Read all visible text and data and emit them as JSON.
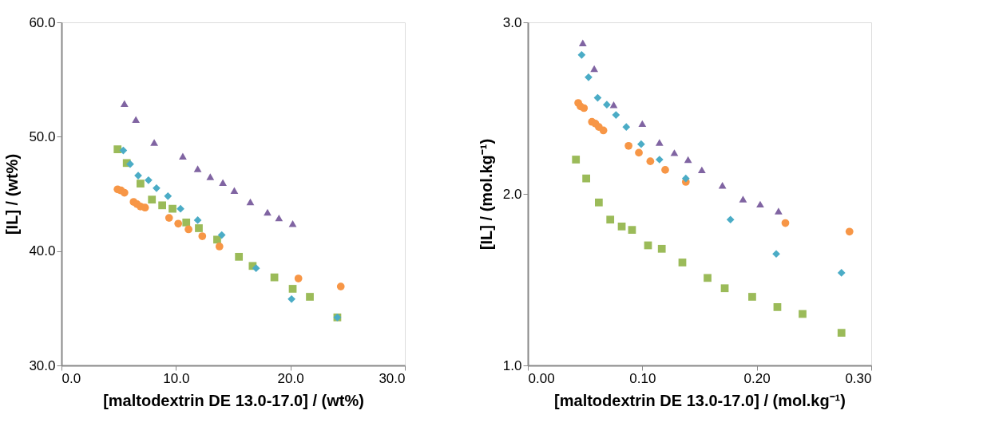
{
  "chart_data": [
    {
      "type": "scatter",
      "xlabel": "[maltodextrin DE 13.0-17.0] / (wt%)",
      "ylabel": "[IL] / (wt%)",
      "xlim": [
        0,
        30
      ],
      "ylim": [
        30,
        60
      ],
      "grid": false,
      "legend": false,
      "xticks": [
        {
          "value": 0,
          "label": "0.0"
        },
        {
          "value": 10,
          "label": "10.0"
        },
        {
          "value": 20,
          "label": "20.0"
        },
        {
          "value": 30,
          "label": "30.0"
        }
      ],
      "yticks": [
        {
          "value": 30,
          "label": "30.0"
        },
        {
          "value": 40,
          "label": "40.0"
        },
        {
          "value": 50,
          "label": "50.0"
        },
        {
          "value": 60,
          "label": "60.0"
        }
      ],
      "series": [
        {
          "color": "#8064a2",
          "marker": "triangle",
          "x": [
            5.5,
            6.5,
            8.1,
            10.6,
            11.9,
            13.0,
            14.1,
            15.1,
            16.5,
            18.0,
            19.0,
            20.2
          ],
          "values": [
            52.9,
            51.5,
            49.5,
            48.3,
            47.2,
            46.5,
            46.0,
            45.3,
            44.3,
            43.4,
            42.9,
            42.4
          ]
        },
        {
          "color": "#4bacc6",
          "marker": "diamond",
          "x": [
            5.4,
            6.0,
            6.7,
            7.6,
            8.3,
            9.3,
            10.4,
            11.9,
            14.0,
            17.0,
            20.1,
            24.1
          ],
          "values": [
            48.8,
            47.6,
            46.6,
            46.2,
            45.5,
            44.8,
            43.7,
            42.7,
            41.4,
            38.5,
            35.8,
            34.2
          ]
        },
        {
          "color": "#9bbb59",
          "marker": "square",
          "x": [
            4.9,
            5.7,
            6.9,
            7.9,
            8.8,
            9.7,
            10.9,
            12.0,
            13.6,
            15.5,
            16.7,
            18.6,
            20.2,
            21.7,
            24.1
          ],
          "values": [
            48.9,
            47.7,
            45.9,
            44.5,
            44.0,
            43.7,
            42.5,
            42.0,
            41.0,
            39.5,
            38.7,
            37.7,
            36.7,
            36.0,
            34.2
          ]
        },
        {
          "color": "#f79646",
          "marker": "circle",
          "x": [
            4.9,
            5.2,
            5.5,
            6.3,
            6.6,
            6.9,
            7.3,
            9.4,
            10.2,
            11.1,
            12.3,
            13.8,
            20.7,
            24.4
          ],
          "values": [
            45.4,
            45.3,
            45.1,
            44.3,
            44.1,
            43.9,
            43.8,
            42.9,
            42.4,
            41.9,
            41.3,
            40.4,
            37.6,
            36.9
          ]
        }
      ]
    },
    {
      "type": "scatter",
      "xlabel": "[maltodextrin DE 13.0-17.0] / (mol.kg⁻¹)",
      "ylabel": "[IL] / (mol.kg⁻¹)",
      "xlim": [
        0,
        0.3
      ],
      "ylim": [
        1,
        3
      ],
      "grid": false,
      "legend": false,
      "xticks": [
        {
          "value": 0,
          "label": "0.00"
        },
        {
          "value": 0.1,
          "label": "0.10"
        },
        {
          "value": 0.2,
          "label": "0.20"
        },
        {
          "value": 0.3,
          "label": "0.30"
        }
      ],
      "yticks": [
        {
          "value": 1,
          "label": "1.0"
        },
        {
          "value": 2,
          "label": "2.0"
        },
        {
          "value": 3,
          "label": "3.0"
        }
      ],
      "series": [
        {
          "color": "#8064a2",
          "marker": "triangle",
          "x": [
            0.048,
            0.058,
            0.075,
            0.1,
            0.115,
            0.128,
            0.14,
            0.152,
            0.17,
            0.188,
            0.203,
            0.219
          ],
          "values": [
            2.88,
            2.73,
            2.52,
            2.41,
            2.3,
            2.24,
            2.2,
            2.14,
            2.05,
            1.97,
            1.94,
            1.9
          ]
        },
        {
          "color": "#4bacc6",
          "marker": "diamond",
          "x": [
            0.047,
            0.053,
            0.061,
            0.069,
            0.077,
            0.086,
            0.099,
            0.115,
            0.138,
            0.177,
            0.217,
            0.274
          ],
          "values": [
            2.81,
            2.68,
            2.56,
            2.52,
            2.46,
            2.39,
            2.29,
            2.2,
            2.09,
            1.85,
            1.65,
            1.54
          ]
        },
        {
          "color": "#9bbb59",
          "marker": "square",
          "x": [
            0.042,
            0.051,
            0.062,
            0.072,
            0.082,
            0.091,
            0.105,
            0.117,
            0.135,
            0.157,
            0.172,
            0.196,
            0.218,
            0.24,
            0.274
          ],
          "values": [
            2.2,
            2.09,
            1.95,
            1.85,
            1.81,
            1.79,
            1.7,
            1.68,
            1.6,
            1.51,
            1.45,
            1.4,
            1.34,
            1.3,
            1.19
          ]
        },
        {
          "color": "#f79646",
          "marker": "circle",
          "x": [
            0.044,
            0.046,
            0.049,
            0.056,
            0.059,
            0.062,
            0.066,
            0.088,
            0.097,
            0.107,
            0.12,
            0.138,
            0.225,
            0.281
          ],
          "values": [
            2.53,
            2.51,
            2.5,
            2.42,
            2.41,
            2.39,
            2.37,
            2.28,
            2.24,
            2.19,
            2.14,
            2.07,
            1.83,
            1.78
          ]
        }
      ]
    }
  ]
}
